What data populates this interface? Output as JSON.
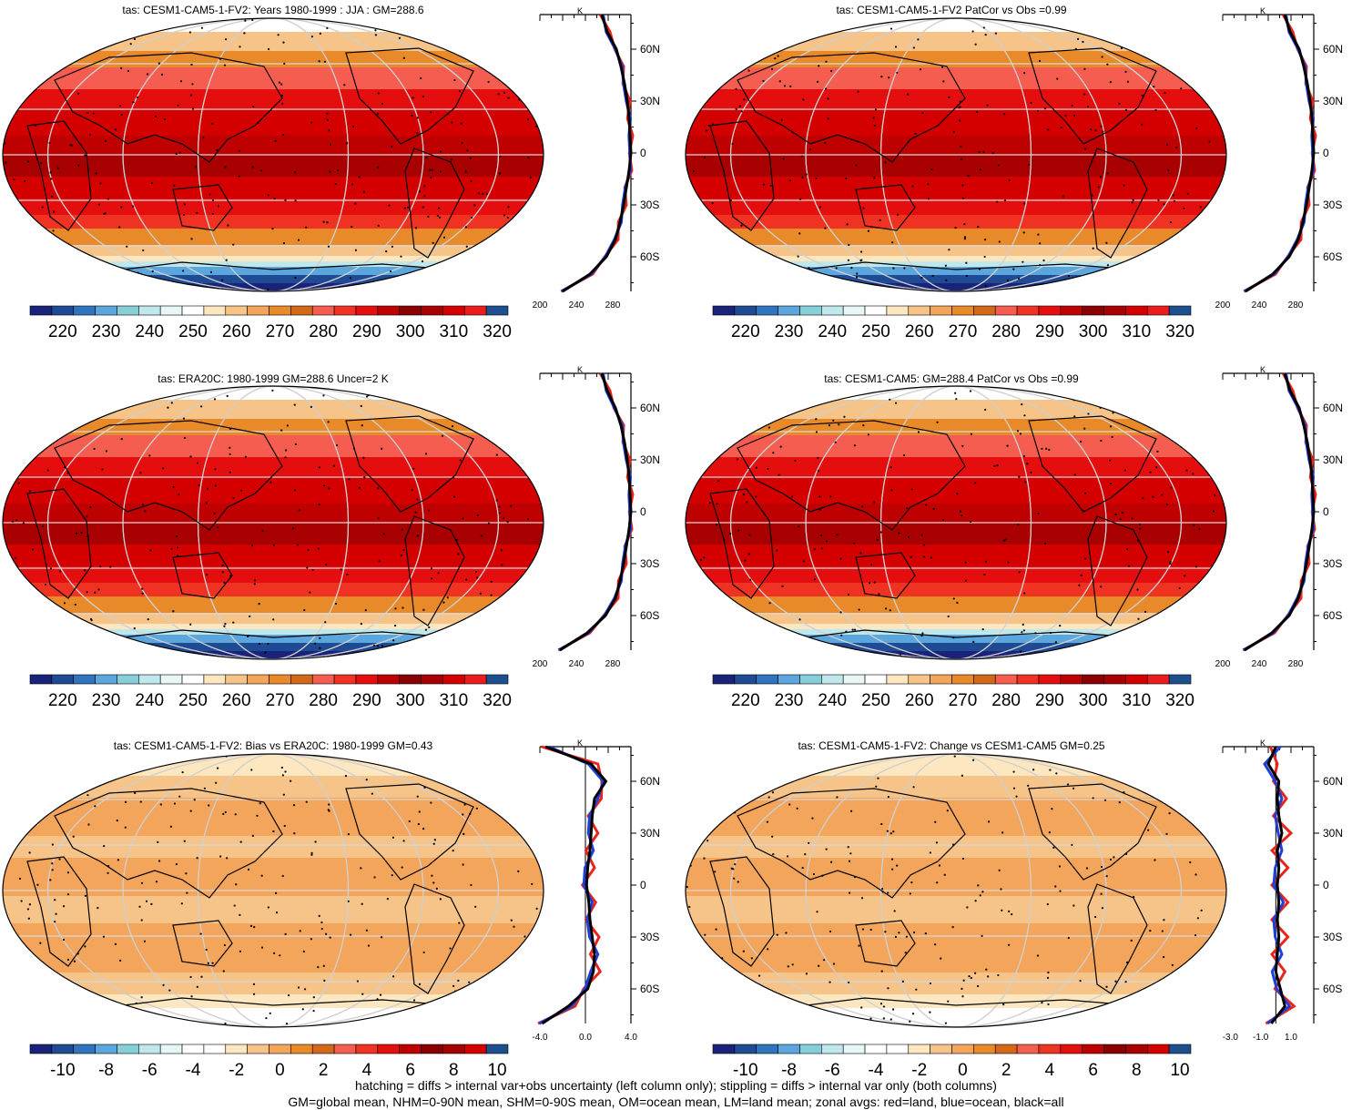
{
  "colors": {
    "abs_scale": [
      "#19237a",
      "#1f4a94",
      "#2f74bd",
      "#5aa6dd",
      "#86cfd8",
      "#bfe8ec",
      "#e8f6f6",
      "#ffffff",
      "#fde7c0",
      "#f6c488",
      "#f3a55b",
      "#e98a2a",
      "#d2681a",
      "#f45d4f",
      "#f03222",
      "#e50e0e",
      "#bf0000",
      "#8a0000",
      "#a80000",
      "#d40000",
      "#ec1c1c",
      "#1d4f8f"
    ],
    "diff_scale": [
      "#19237a",
      "#1f4a94",
      "#2f74bd",
      "#5aa6dd",
      "#86cfd8",
      "#bfe8ec",
      "#e8f6f6",
      "#ffffff",
      "#ffffff",
      "#fde7c0",
      "#f6c488",
      "#f3a55b",
      "#e98a2a",
      "#d2681a",
      "#f45d4f",
      "#f03222",
      "#e50e0e",
      "#bf0000",
      "#8a0000",
      "#a80000",
      "#d40000",
      "#1d4f8f"
    ],
    "land": "#e8251d",
    "ocean": "#1f3fd6",
    "all": "#000000"
  },
  "panels": [
    {
      "title": "tas: CESM1-CAM5-1-FV2: Years 1980-1999 : JJA : GM=288.6",
      "kind": "abs",
      "hatch": true
    },
    {
      "title": "tas: CESM1-CAM5-1-FV2 PatCor vs Obs =0.99",
      "kind": "abs",
      "hatch": false
    },
    {
      "title": "tas: ERA20C: 1980-1999 GM=288.6 Uncer=2 K",
      "kind": "abs",
      "hatch": true
    },
    {
      "title": "tas: CESM1-CAM5: GM=288.4 PatCor vs Obs =0.99",
      "kind": "abs",
      "hatch": false
    },
    {
      "title": "tas: CESM1-CAM5-1-FV2: Bias vs ERA20C: 1980-1999 GM=0.43",
      "kind": "diff",
      "hatch": true
    },
    {
      "title": "tas: CESM1-CAM5-1-FV2: Change vs CESM1-CAM5 GM=0.25",
      "kind": "diff",
      "hatch": false
    }
  ],
  "colorbars": {
    "abs_labels": [
      "220",
      "230",
      "240",
      "250",
      "260",
      "270",
      "280",
      "290",
      "300",
      "310",
      "320"
    ],
    "diff_labels": [
      "-10",
      "-8",
      "-6",
      "-4",
      "-2",
      "0",
      "2",
      "4",
      "6",
      "8",
      "10"
    ]
  },
  "zonal_axes": {
    "unit": "K",
    "lat_labels": [
      "60N",
      "30N",
      "0",
      "30S",
      "60S"
    ],
    "abs_x_labels": [
      "200",
      "240",
      "280"
    ],
    "bias_x_labels": [
      "-4.0",
      "0.0",
      "4.0"
    ],
    "change_x_labels": [
      "-3.0",
      "-1.0",
      "1.0"
    ]
  },
  "footer": {
    "line1": "hatching = diffs > internal var+obs uncertainty (left column only); stippling = diffs > internal var only (both columns)",
    "line2": "GM=global mean, NHM=0-90N mean, SHM=0-90S mean, OM=ocean mean, LM=land mean; zonal avgs: red=land, blue=ocean, black=all"
  },
  "chart_data": [
    {
      "type": "heatmap",
      "title": "tas: CESM1-CAM5-1-FV2: Years 1980-1999 : JJA : GM=288.6",
      "colorbar_range": [
        215,
        325
      ],
      "colorbar_ticks": [
        220,
        230,
        240,
        250,
        260,
        270,
        280,
        290,
        300,
        310,
        320
      ],
      "zonal_profile": {
        "xlim": [
          200,
          300
        ],
        "x_ticks": [
          200,
          240,
          280
        ],
        "lat": [
          80,
          70,
          60,
          50,
          40,
          30,
          20,
          10,
          0,
          -10,
          -20,
          -30,
          -40,
          -50,
          -60,
          -70,
          -80
        ],
        "all": [
          268,
          274,
          284,
          289,
          293,
          296,
          298,
          299,
          300,
          298,
          295,
          292,
          288,
          283,
          273,
          255,
          225
        ]
      }
    },
    {
      "type": "heatmap",
      "title": "tas: CESM1-CAM5-1-FV2 PatCor vs Obs =0.99",
      "colorbar_range": [
        215,
        325
      ],
      "zonal_profile": {
        "xlim": [
          200,
          300
        ],
        "x_ticks": [
          200,
          240,
          280
        ],
        "lat": [
          80,
          70,
          60,
          50,
          40,
          30,
          20,
          10,
          0,
          -10,
          -20,
          -30,
          -40,
          -50,
          -60,
          -70,
          -80
        ],
        "all": [
          268,
          274,
          284,
          289,
          293,
          296,
          298,
          299,
          300,
          298,
          295,
          292,
          288,
          283,
          273,
          255,
          225
        ]
      }
    },
    {
      "type": "heatmap",
      "title": "tas: ERA20C: 1980-1999 GM=288.6 Uncer=2 K",
      "colorbar_range": [
        215,
        325
      ],
      "zonal_profile": {
        "xlim": [
          200,
          300
        ],
        "x_ticks": [
          200,
          240,
          280
        ],
        "lat": [
          80,
          70,
          60,
          50,
          40,
          30,
          20,
          10,
          0,
          -10,
          -20,
          -30,
          -40,
          -50,
          -60,
          -70,
          -80
        ],
        "all": [
          268,
          274,
          283,
          289,
          293,
          296,
          298,
          299,
          300,
          298,
          295,
          292,
          288,
          283,
          272,
          252,
          222
        ]
      }
    },
    {
      "type": "heatmap",
      "title": "tas: CESM1-CAM5: GM=288.4 PatCor vs Obs =0.99",
      "colorbar_range": [
        215,
        325
      ],
      "zonal_profile": {
        "xlim": [
          200,
          300
        ],
        "x_ticks": [
          200,
          240,
          280
        ],
        "lat": [
          80,
          70,
          60,
          50,
          40,
          30,
          20,
          10,
          0,
          -10,
          -20,
          -30,
          -40,
          -50,
          -60,
          -70,
          -80
        ],
        "all": [
          268,
          274,
          284,
          289,
          293,
          296,
          298,
          299,
          300,
          298,
          295,
          292,
          288,
          283,
          273,
          254,
          224
        ]
      }
    },
    {
      "type": "heatmap",
      "title": "tas: CESM1-CAM5-1-FV2: Bias vs ERA20C: 1980-1999 GM=0.43",
      "colorbar_range": [
        -11,
        11
      ],
      "colorbar_ticks": [
        -10,
        -8,
        -6,
        -4,
        -2,
        0,
        2,
        4,
        6,
        8,
        10
      ],
      "zonal_profile": {
        "xlim": [
          -4,
          4
        ],
        "x_ticks": [
          -4,
          0,
          4
        ],
        "lat": [
          80,
          70,
          60,
          50,
          40,
          30,
          20,
          10,
          0,
          -10,
          -20,
          -30,
          -40,
          -50,
          -60,
          -70,
          -80
        ],
        "all": [
          -3.5,
          0.5,
          1.8,
          0.8,
          0.6,
          0.5,
          0.4,
          0.2,
          0.1,
          0.3,
          0.4,
          0.6,
          0.8,
          0.7,
          0.2,
          -1.5,
          -3.8
        ]
      }
    },
    {
      "type": "heatmap",
      "title": "tas: CESM1-CAM5-1-FV2: Change vs CESM1-CAM5 GM=0.25",
      "colorbar_range": [
        -11,
        11
      ],
      "zonal_profile": {
        "xlim": [
          -3.5,
          2.5
        ],
        "x_ticks": [
          -3,
          -1,
          1
        ],
        "lat": [
          80,
          70,
          60,
          50,
          40,
          30,
          20,
          10,
          0,
          -10,
          -20,
          -30,
          -40,
          -50,
          -60,
          -70,
          -80
        ],
        "all": [
          0.0,
          -0.5,
          0.2,
          0.1,
          0.2,
          0.4,
          0.1,
          0.2,
          0.1,
          0.2,
          0.1,
          0.2,
          0.1,
          0.0,
          0.3,
          0.6,
          -0.3
        ]
      }
    }
  ]
}
